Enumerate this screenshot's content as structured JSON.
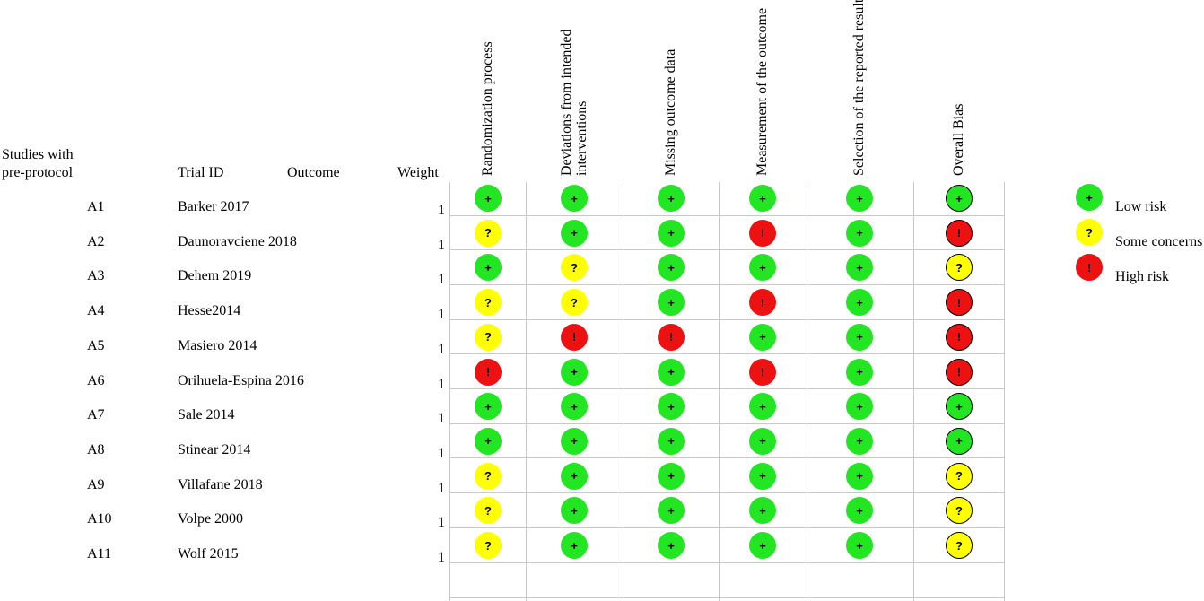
{
  "header": {
    "group_label_line1": "Studies with",
    "group_label_line2": "pre-protocol",
    "trial_id": "Trial ID",
    "outcome": "Outcome",
    "weight": "Weight"
  },
  "domains": [
    [
      "Randomization process"
    ],
    [
      "Deviations from intended",
      "interventions"
    ],
    [
      "Missing outcome data"
    ],
    [
      "Measurement of the outcome"
    ],
    [
      "Selection of the reported result"
    ],
    [
      "Overall Bias"
    ]
  ],
  "symbols": {
    "low": "+",
    "some": "?",
    "high": "!"
  },
  "colors": {
    "low": "#22e622",
    "some": "#ffff00",
    "high": "#ee1111"
  },
  "legend": [
    {
      "level": "low",
      "label": "Low risk"
    },
    {
      "level": "some",
      "label": "Some concerns"
    },
    {
      "level": "high",
      "label": "High risk"
    }
  ],
  "chart_data": {
    "type": "table",
    "columns": [
      "Randomization process",
      "Deviations from intended interventions",
      "Missing outcome data",
      "Measurement of the outcome",
      "Selection of the reported result",
      "Overall Bias"
    ],
    "rows": [
      {
        "id": "A1",
        "trial": "Barker 2017",
        "outcome": "",
        "weight": "1",
        "ratings": [
          "low",
          "low",
          "low",
          "low",
          "low",
          "low"
        ]
      },
      {
        "id": "A2",
        "trial": "Daunoravciene 2018",
        "outcome": "",
        "weight": "1",
        "ratings": [
          "some",
          "low",
          "low",
          "high",
          "low",
          "high"
        ]
      },
      {
        "id": "A3",
        "trial": "Dehem 2019",
        "outcome": "",
        "weight": "1",
        "ratings": [
          "low",
          "some",
          "low",
          "low",
          "low",
          "some"
        ]
      },
      {
        "id": "A4",
        "trial": "Hesse2014",
        "outcome": "",
        "weight": "1",
        "ratings": [
          "some",
          "some",
          "low",
          "high",
          "low",
          "high"
        ]
      },
      {
        "id": "A5",
        "trial": "Masiero 2014",
        "outcome": "",
        "weight": "1",
        "ratings": [
          "some",
          "high",
          "high",
          "low",
          "low",
          "high"
        ]
      },
      {
        "id": "A6",
        "trial": "Orihuela-Espina 2016",
        "outcome": "",
        "weight": "1",
        "ratings": [
          "high",
          "low",
          "low",
          "high",
          "low",
          "high"
        ]
      },
      {
        "id": "A7",
        "trial": "Sale 2014",
        "outcome": "",
        "weight": "1",
        "ratings": [
          "low",
          "low",
          "low",
          "low",
          "low",
          "low"
        ]
      },
      {
        "id": "A8",
        "trial": "Stinear 2014",
        "outcome": "",
        "weight": "1",
        "ratings": [
          "low",
          "low",
          "low",
          "low",
          "low",
          "low"
        ]
      },
      {
        "id": "A9",
        "trial": "Villafane 2018",
        "outcome": "",
        "weight": "1",
        "ratings": [
          "some",
          "low",
          "low",
          "low",
          "low",
          "some"
        ]
      },
      {
        "id": "A10",
        "trial": "Volpe 2000",
        "outcome": "",
        "weight": "1",
        "ratings": [
          "some",
          "low",
          "low",
          "low",
          "low",
          "some"
        ]
      },
      {
        "id": "A11",
        "trial": "Wolf 2015",
        "outcome": "",
        "weight": "1",
        "ratings": [
          "some",
          "low",
          "low",
          "low",
          "low",
          "some"
        ]
      }
    ]
  }
}
